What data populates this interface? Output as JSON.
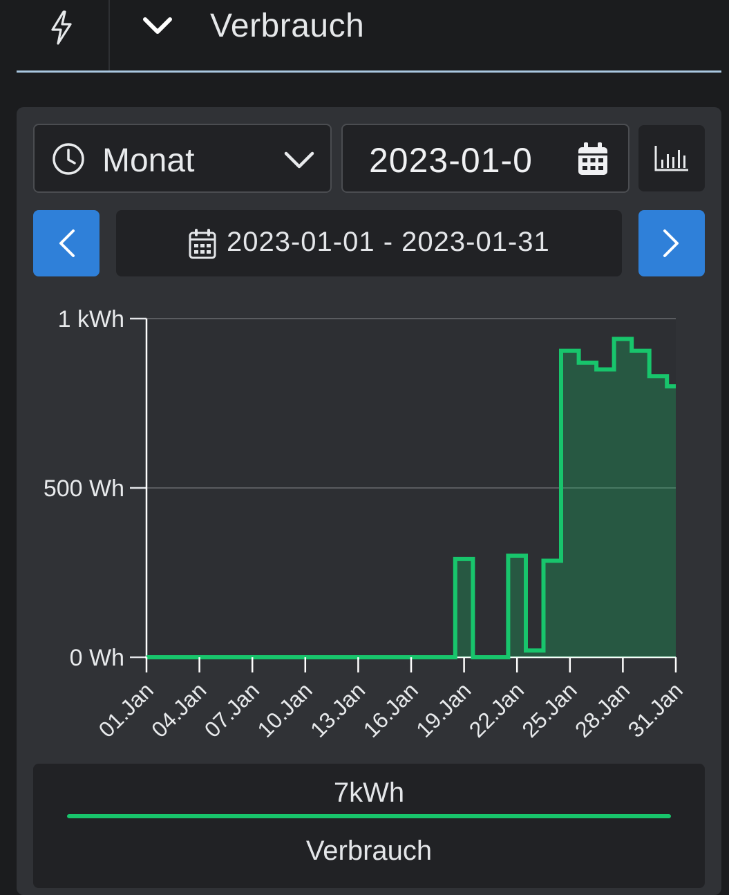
{
  "header": {
    "title": "Verbrauch",
    "icon": "lightning-icon",
    "toggle_icon": "chevron-down-icon",
    "underline_color": "#a9c7e0"
  },
  "controls": {
    "period": {
      "label": "Monat",
      "icon": "clock-icon"
    },
    "date": {
      "value": "2023-01-0",
      "icon": "calendar-icon"
    },
    "chart_button_icon": "bar-chart-icon",
    "range": {
      "text": "2023-01-01 - 2023-01-31"
    },
    "accent_color": "#2f80d9"
  },
  "chart_data": {
    "type": "area",
    "step": true,
    "x": [
      "01.Jan",
      "02.Jan",
      "03.Jan",
      "04.Jan",
      "05.Jan",
      "06.Jan",
      "07.Jan",
      "08.Jan",
      "09.Jan",
      "10.Jan",
      "11.Jan",
      "12.Jan",
      "13.Jan",
      "14.Jan",
      "15.Jan",
      "16.Jan",
      "17.Jan",
      "18.Jan",
      "19.Jan",
      "20.Jan",
      "21.Jan",
      "22.Jan",
      "23.Jan",
      "24.Jan",
      "25.Jan",
      "26.Jan",
      "27.Jan",
      "28.Jan",
      "29.Jan",
      "30.Jan",
      "31.Jan"
    ],
    "series": [
      {
        "values": [
          0,
          0,
          0,
          0,
          0,
          0,
          0,
          0,
          0,
          0,
          0,
          0,
          0,
          0,
          0,
          0,
          0,
          0,
          290,
          0,
          0,
          300,
          20,
          285,
          905,
          870,
          850,
          940,
          905,
          830,
          800
        ],
        "color": "#18c56c"
      }
    ],
    "y_ticks": [
      {
        "value": 0,
        "label": "0 Wh"
      },
      {
        "value": 500,
        "label": "500 Wh"
      },
      {
        "value": 1000,
        "label": "1 kWh"
      }
    ],
    "x_ticks": [
      "01.Jan",
      "04.Jan",
      "07.Jan",
      "10.Jan",
      "13.Jan",
      "16.Jan",
      "19.Jan",
      "22.Jan",
      "25.Jan",
      "28.Jan",
      "31.Jan"
    ],
    "ylim": [
      0,
      1000
    ],
    "grid": true
  },
  "legend": {
    "total": "7kWh",
    "name": "Verbrauch",
    "color": "#18c56c"
  }
}
